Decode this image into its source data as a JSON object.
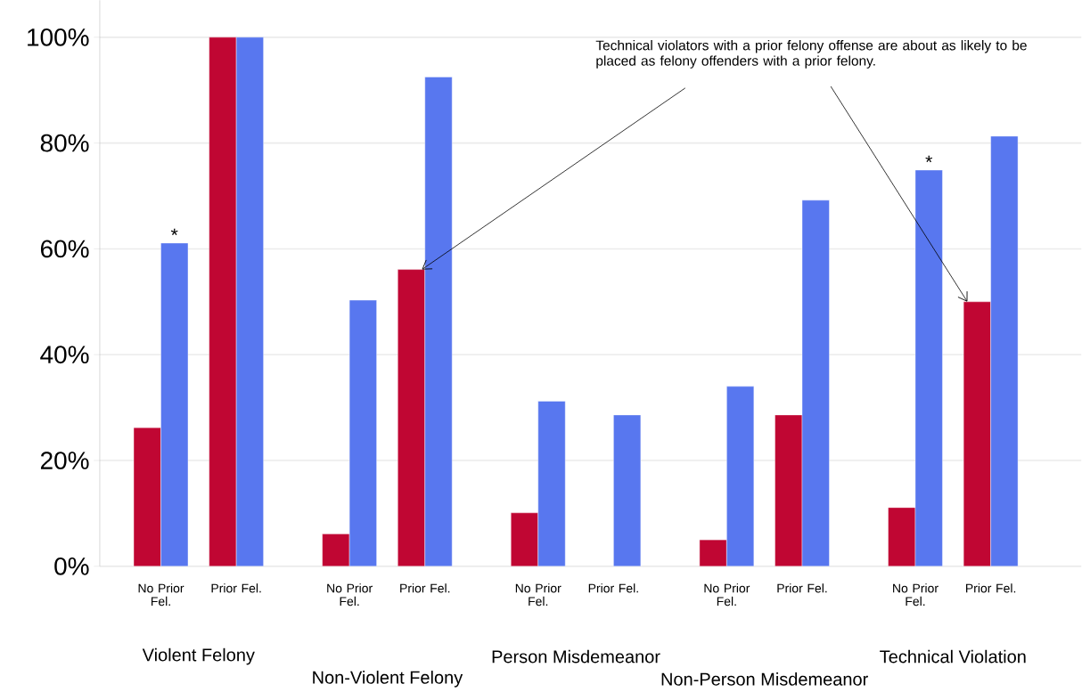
{
  "chart_data": {
    "type": "bar",
    "categories": [
      "No Prior Fel.",
      "Prior Fel.",
      "No Prior Fel.",
      "Prior Fel.",
      "No Prior Fel.",
      "Prior Fel.",
      "No Prior Fel.",
      "Prior Fel.",
      "No Prior Fel.",
      "Prior Fel."
    ],
    "series": [
      {
        "color": "#c00633",
        "values": [
          26.2,
          100,
          6.1,
          56.1,
          10.1,
          null,
          5.0,
          28.6,
          11.1,
          50
        ]
      },
      {
        "color": "#5877ef",
        "values": [
          61.1,
          100,
          50.3,
          92.5,
          31.2,
          28.6,
          34.0,
          69.2,
          74.9,
          81.3
        ],
        "value_labels": [
          "*",
          null,
          null,
          null,
          null,
          null,
          null,
          null,
          "*",
          null
        ]
      }
    ],
    "ylim": [
      0,
      107
    ],
    "yticks": [
      {
        "value": 0,
        "label": "0%"
      },
      {
        "value": 20,
        "label": "20%"
      },
      {
        "value": 40,
        "label": "40%"
      },
      {
        "value": 60,
        "label": "60%"
      },
      {
        "value": 80,
        "label": "80%"
      },
      {
        "value": 100,
        "label": "100%"
      }
    ],
    "grid": "y",
    "annotations": [
      "Violent Felony",
      "Non-Violent Felony",
      "Person Misdemeanor",
      "Non-Person Misdemeanor",
      "Technical Violation",
      "Technical violators with a prior felony offense are about as likely to be placed as felony offenders with a prior felony."
    ]
  }
}
